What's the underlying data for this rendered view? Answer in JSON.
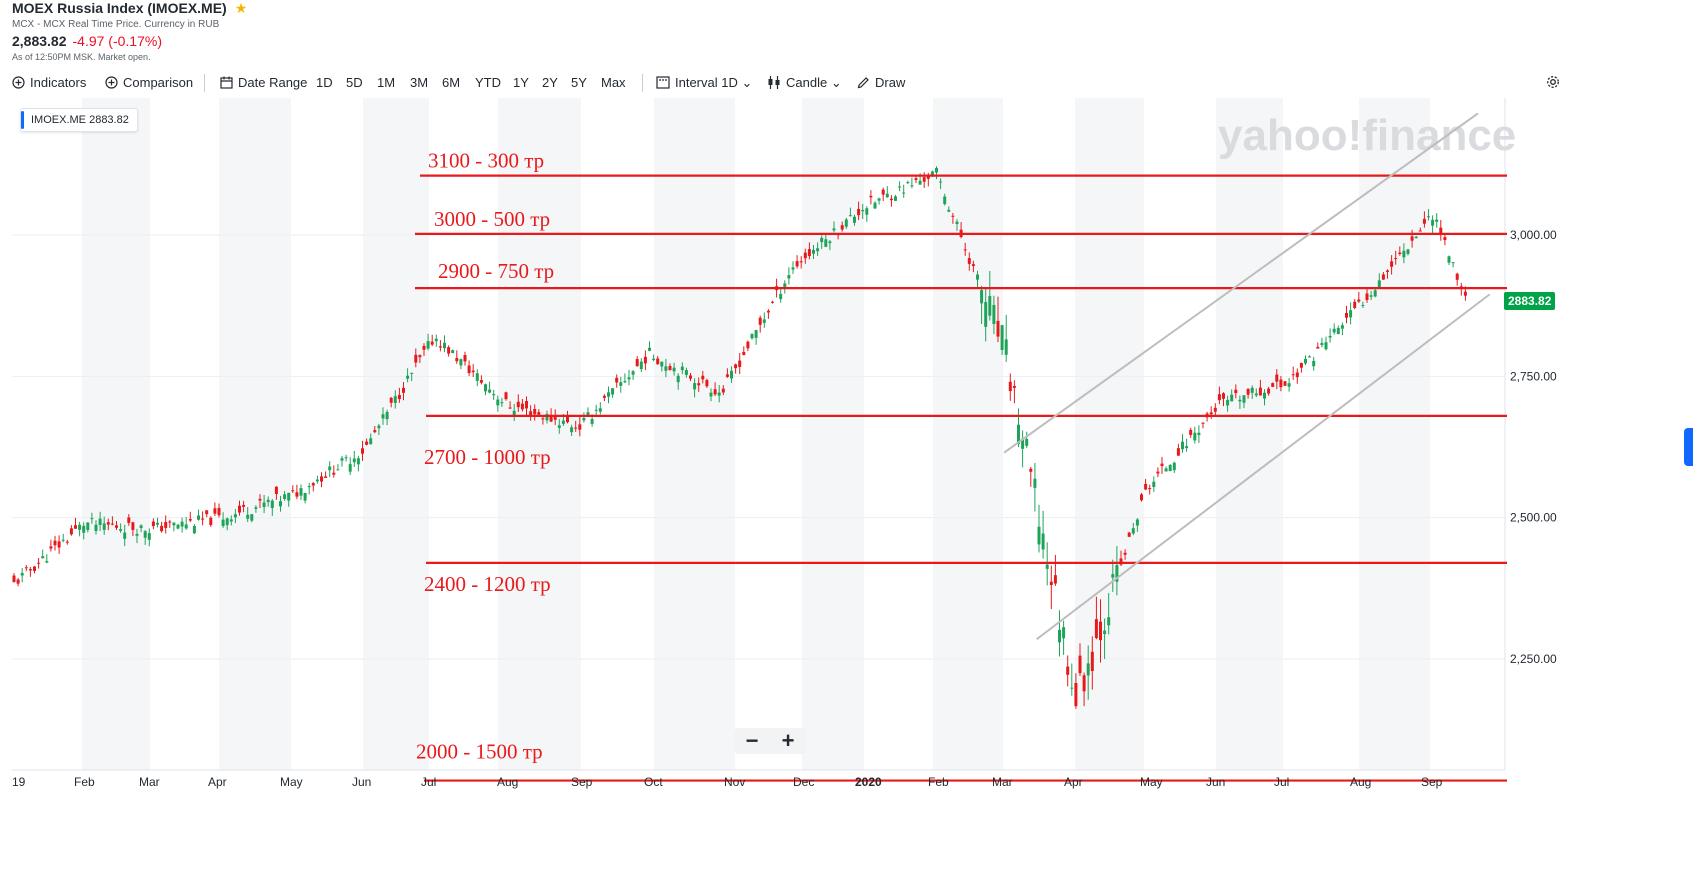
{
  "header": {
    "title": "MOEX Russia Index (IMOEX.ME)",
    "subtitle": "MCX - MCX Real Time Price. Currency in RUB",
    "price": "2,883.82",
    "change": "-4.97 (-0.17%)",
    "as_of": "As of 12:50PM MSK. Market open."
  },
  "toolbar": {
    "indicators": "Indicators",
    "comparison": "Comparison",
    "date_range": "Date Range",
    "ranges": [
      "1D",
      "5D",
      "1M",
      "3M",
      "6M",
      "YTD",
      "1Y",
      "2Y",
      "5Y",
      "Max"
    ],
    "interval_label": "Interval",
    "interval_value": "1D",
    "chart_type": "Candle",
    "draw": "Draw"
  },
  "legend": {
    "symbol": "IMOEX.ME",
    "value": "2883.82"
  },
  "last_price_tag": "2883.82",
  "watermark": "yahoo!finance",
  "zoom": {
    "minus": "−",
    "plus": "+"
  },
  "colors": {
    "up": "#1ea45a",
    "down": "#e8191b",
    "level_line": "#e8191b",
    "channel": "#bdbdbd",
    "accent": "#0f69ff"
  },
  "chart_data": {
    "type": "candlestick",
    "x_labels": [
      "19",
      "Feb",
      "Mar",
      "Apr",
      "May",
      "Jun",
      "Jul",
      "Aug",
      "Sep",
      "Oct",
      "Nov",
      "Dec",
      "2020",
      "Feb",
      "Mar",
      "Apr",
      "May",
      "Jun",
      "Jul",
      "Aug",
      "Sep"
    ],
    "y_ticks": [
      "3,000.00",
      "2,750.00",
      "2,500.00",
      "2,250.00"
    ],
    "y_tick_values": [
      3000,
      2750,
      2500,
      2250
    ],
    "ylim": [
      2035,
      3280
    ],
    "grid": true,
    "close_path": [
      {
        "x": "2019-01",
        "y": 2380
      },
      {
        "x": "2019-02",
        "y": 2490
      },
      {
        "x": "2019-03",
        "y": 2480
      },
      {
        "x": "2019-04",
        "y": 2500
      },
      {
        "x": "2019-05",
        "y": 2540
      },
      {
        "x": "2019-06",
        "y": 2620
      },
      {
        "x": "2019-07",
        "y": 2820
      },
      {
        "x": "2019-08",
        "y": 2700
      },
      {
        "x": "2019-09",
        "y": 2660
      },
      {
        "x": "2019-10",
        "y": 2790
      },
      {
        "x": "2019-11",
        "y": 2720
      },
      {
        "x": "2019-12",
        "y": 2940
      },
      {
        "x": "2020-01",
        "y": 3050
      },
      {
        "x": "2020-02",
        "y": 3110
      },
      {
        "x": "2020-03",
        "y": 2800
      },
      {
        "x": "2020-04",
        "y": 2180
      },
      {
        "x": "2020-05",
        "y": 2550
      },
      {
        "x": "2020-06",
        "y": 2700
      },
      {
        "x": "2020-07",
        "y": 2740
      },
      {
        "x": "2020-08",
        "y": 2880
      },
      {
        "x": "2020-09",
        "y": 3040
      },
      {
        "x": "2020-09-15",
        "y": 2883.82
      }
    ],
    "annotations": {
      "levels": [
        {
          "label": "3100 - 300 тр",
          "value": 3105
        },
        {
          "label": "3000 - 500 тр",
          "value": 3002
        },
        {
          "label": "2900 - 750 тр",
          "value": 2906
        },
        {
          "label": "2700 - 1000 тр",
          "value": 2680
        },
        {
          "label": "2400 - 1200 тр",
          "value": 2420
        },
        {
          "label": "2000 - 1500 тр",
          "value": 2035
        }
      ],
      "channel": {
        "upper": [
          {
            "x": "2020-03",
            "y": 2615
          },
          {
            "x": "2020-09-20",
            "y": 3215
          }
        ],
        "lower": [
          {
            "x": "2020-03-15",
            "y": 2285
          },
          {
            "x": "2020-09-25",
            "y": 2895
          }
        ]
      }
    }
  }
}
